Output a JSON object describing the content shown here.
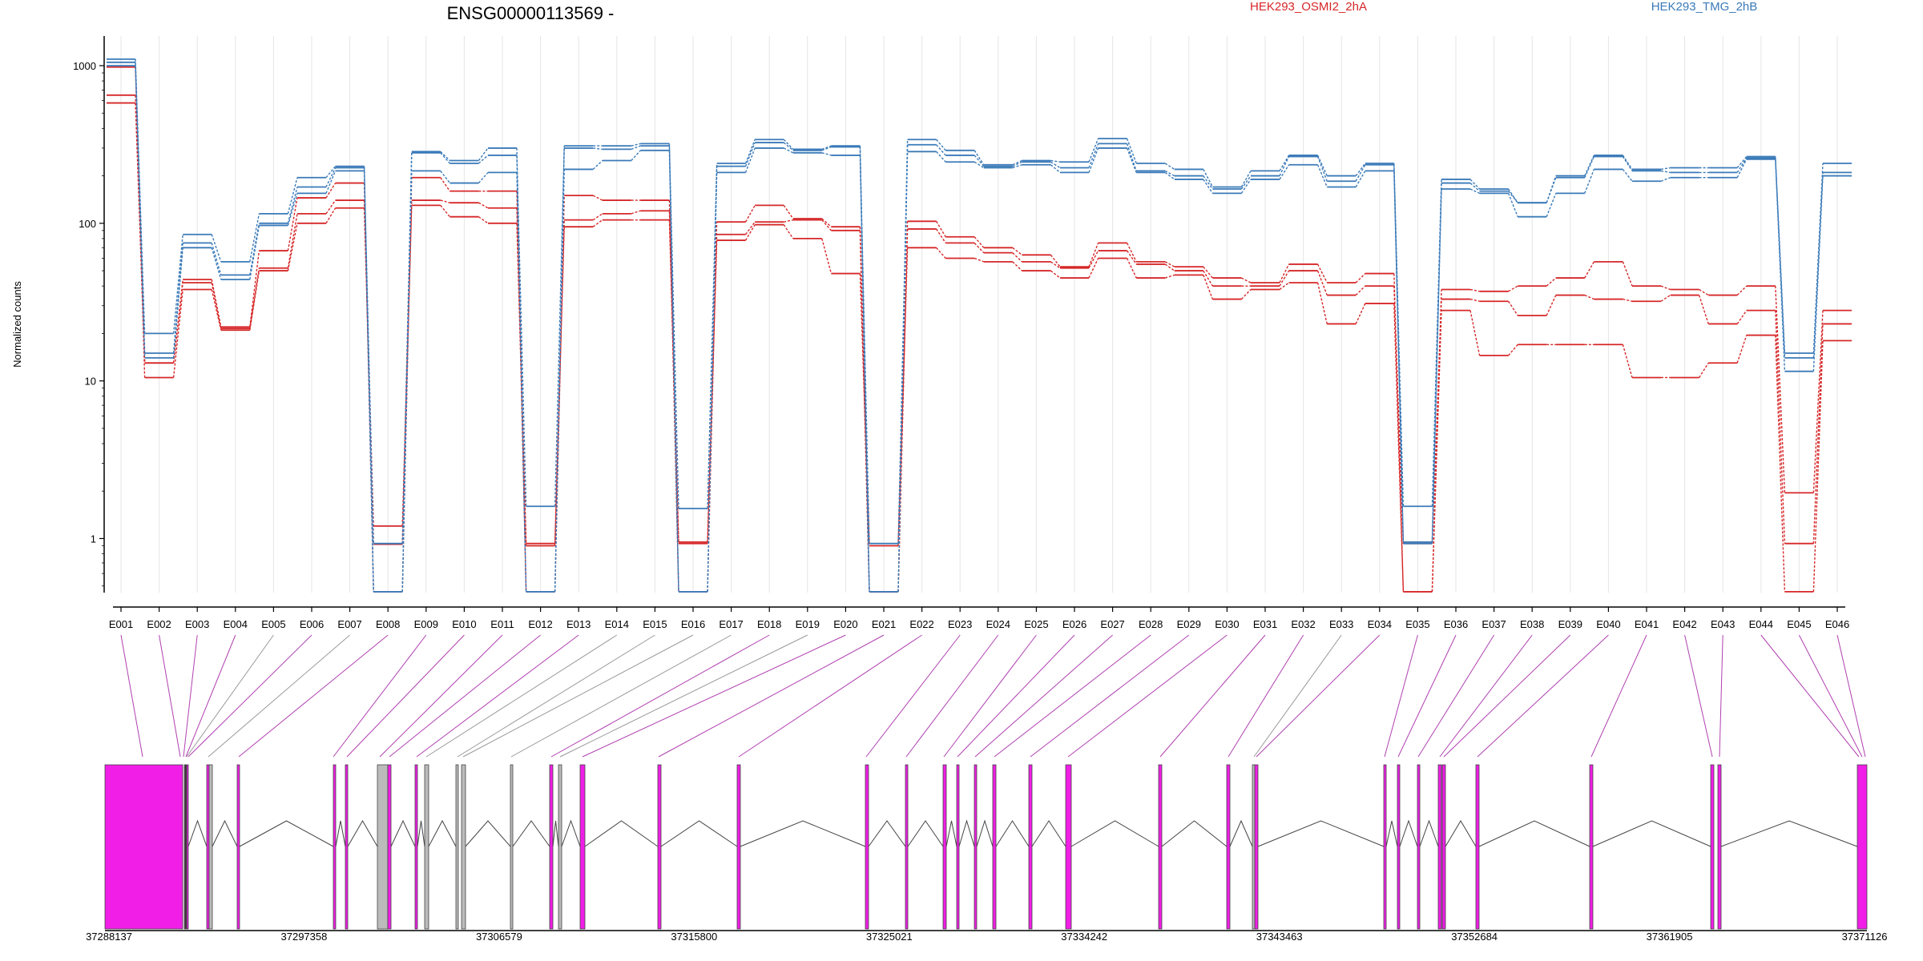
{
  "chart_data": {
    "type": "line",
    "title": "ENSG00000113569 -",
    "ylabel": "Normalized counts",
    "yscale": "log",
    "ylim": [
      0.45,
      1400
    ],
    "yticks": [
      1,
      10,
      100,
      1000
    ],
    "ytick_labels": [
      "1",
      "10",
      "100",
      "1000"
    ],
    "categories": [
      "E001",
      "E002",
      "E003",
      "E004",
      "E005",
      "E006",
      "E007",
      "E008",
      "E009",
      "E010",
      "E011",
      "E012",
      "E013",
      "E014",
      "E015",
      "E016",
      "E017",
      "E018",
      "E019",
      "E020",
      "E021",
      "E022",
      "E023",
      "E024",
      "E025",
      "E026",
      "E027",
      "E028",
      "E029",
      "E030",
      "E031",
      "E032",
      "E033",
      "E034",
      "E035",
      "E036",
      "E037",
      "E038",
      "E039",
      "E040",
      "E041",
      "E042",
      "E043",
      "E044",
      "E045",
      "E046"
    ],
    "legend": [
      {
        "name": "HEK293_OSMI2_2hA",
        "color": "#d62728"
      },
      {
        "name": "HEK293_TMG_2hB",
        "color": "#3a7ab8"
      }
    ],
    "series": [
      {
        "group": "HEK293_OSMI2_2hA",
        "color": "#d62728",
        "values": [
          980,
          10.5,
          38,
          21,
          50,
          100,
          125,
          1.2,
          130,
          110,
          100,
          0.9,
          95,
          105,
          105,
          0.95,
          78,
          98,
          80,
          48,
          0.9,
          70,
          60,
          57,
          50,
          45,
          60,
          45,
          47,
          33,
          38,
          42,
          23,
          31,
          0.46,
          28,
          14.5,
          17,
          17,
          17,
          10.5,
          10.5,
          13,
          19.5,
          0.46,
          18
        ]
      },
      {
        "group": "HEK293_OSMI2_2hA",
        "color": "#d62728",
        "values": [
          650,
          13,
          42,
          21.5,
          52,
          115,
          140,
          0.92,
          140,
          135,
          125,
          0.93,
          105,
          115,
          120,
          0.93,
          85,
          102,
          105,
          90,
          0.46,
          92,
          75,
          65,
          57,
          52,
          67,
          55,
          50,
          40,
          40,
          50,
          35,
          40,
          0.93,
          33,
          32,
          26,
          35,
          33,
          32,
          35,
          23,
          28,
          0.93,
          23
        ]
      },
      {
        "group": "HEK293_OSMI2_2hA",
        "color": "#d62728",
        "values": [
          580,
          13,
          44,
          22,
          67,
          145,
          180,
          0.46,
          195,
          160,
          160,
          0.46,
          150,
          140,
          140,
          0.46,
          102,
          130,
          107,
          95,
          0.46,
          103,
          82,
          70,
          63,
          53,
          75,
          57,
          53,
          45,
          42,
          55,
          42,
          48,
          0.46,
          38,
          37,
          40,
          45,
          57,
          40,
          38,
          35,
          40,
          1.95,
          28
        ]
      },
      {
        "group": "HEK293_TMG_2hB",
        "color": "#3a7ab8",
        "values": [
          1000,
          14,
          70,
          44,
          97,
          155,
          215,
          0.46,
          215,
          180,
          210,
          0.46,
          220,
          250,
          290,
          0.46,
          210,
          300,
          280,
          270,
          0.46,
          285,
          245,
          225,
          235,
          210,
          300,
          210,
          190,
          155,
          190,
          235,
          170,
          215,
          0.93,
          165,
          155,
          110,
          155,
          220,
          185,
          195,
          195,
          255,
          11.5,
          200
        ]
      },
      {
        "group": "HEK293_TMG_2hB",
        "color": "#3a7ab8",
        "values": [
          1050,
          15,
          75,
          47,
          100,
          170,
          225,
          0.93,
          280,
          240,
          270,
          1.6,
          300,
          295,
          310,
          1.55,
          230,
          325,
          290,
          305,
          0.93,
          315,
          270,
          230,
          245,
          225,
          320,
          215,
          200,
          165,
          200,
          265,
          185,
          235,
          0.95,
          180,
          160,
          135,
          195,
          265,
          215,
          210,
          210,
          260,
          14,
          210
        ]
      },
      {
        "group": "HEK293_TMG_2hB",
        "color": "#3a7ab8",
        "values": [
          1100,
          20,
          85,
          57,
          115,
          195,
          230,
          0.46,
          285,
          250,
          300,
          0.46,
          310,
          310,
          320,
          0.46,
          240,
          340,
          295,
          310,
          0.46,
          340,
          290,
          235,
          250,
          245,
          345,
          240,
          220,
          170,
          215,
          270,
          200,
          240,
          1.6,
          190,
          165,
          135,
          200,
          270,
          220,
          225,
          225,
          265,
          15,
          240
        ]
      }
    ],
    "gene_axis": {
      "tick_labels": [
        "37288137",
        "37297358",
        "37306579",
        "37315800",
        "37325021",
        "37334242",
        "37343463",
        "37352684",
        "37361905",
        "37371126"
      ]
    }
  }
}
